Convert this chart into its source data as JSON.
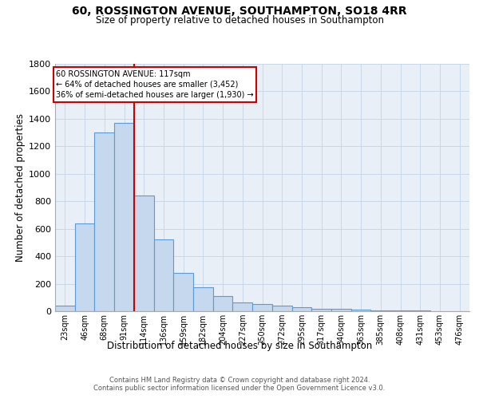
{
  "title": "60, ROSSINGTON AVENUE, SOUTHAMPTON, SO18 4RR",
  "subtitle": "Size of property relative to detached houses in Southampton",
  "xlabel": "Distribution of detached houses by size in Southampton",
  "ylabel": "Number of detached properties",
  "bar_color": "#c5d8ed",
  "bar_edge_color": "#5b9bd5",
  "categories": [
    "23sqm",
    "46sqm",
    "68sqm",
    "91sqm",
    "114sqm",
    "136sqm",
    "159sqm",
    "182sqm",
    "204sqm",
    "227sqm",
    "250sqm",
    "272sqm",
    "295sqm",
    "317sqm",
    "340sqm",
    "363sqm",
    "385sqm",
    "408sqm",
    "431sqm",
    "453sqm",
    "476sqm"
  ],
  "values": [
    40,
    640,
    1300,
    1370,
    840,
    520,
    280,
    175,
    110,
    65,
    50,
    40,
    30,
    20,
    15,
    10,
    5,
    5,
    3,
    2,
    1
  ],
  "property_line_x": 3.5,
  "annotation_text": "60 ROSSINGTON AVENUE: 117sqm\n← 64% of detached houses are smaller (3,452)\n36% of semi-detached houses are larger (1,930) →",
  "annotation_box_color": "#cc0000",
  "ylim": [
    0,
    1800
  ],
  "yticks": [
    0,
    200,
    400,
    600,
    800,
    1000,
    1200,
    1400,
    1600,
    1800
  ],
  "grid_color": "#c8d8e8",
  "background_color": "#e8eff6",
  "footer_line1": "Contains HM Land Registry data © Crown copyright and database right 2024.",
  "footer_line2": "Contains public sector information licensed under the Open Government Licence v3.0."
}
